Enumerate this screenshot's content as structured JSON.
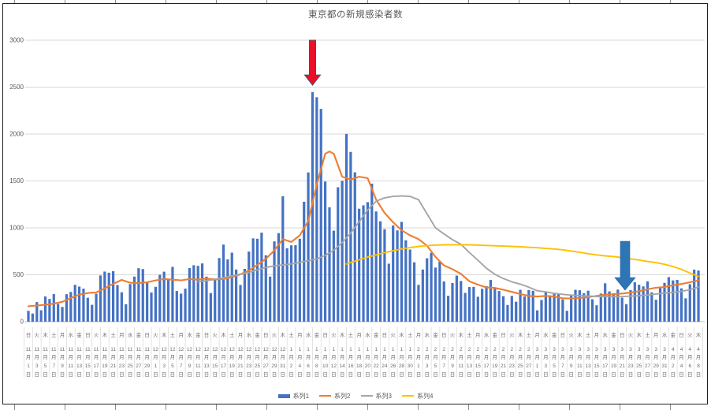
{
  "chart": {
    "title": "東京都の新規感染者数",
    "legend": [
      {
        "label": "系列1",
        "marker": "bar",
        "color": "#4472C4"
      },
      {
        "label": "系列2",
        "marker": "line",
        "color": "#ED7D31"
      },
      {
        "label": "系列3",
        "marker": "line",
        "color": "#A5A5A5"
      },
      {
        "label": "系列4",
        "marker": "line",
        "color": "#FFC000"
      }
    ],
    "colors": {
      "bar": "#4472C4",
      "line2": "#ED7D31",
      "line3": "#A5A5A5",
      "line4": "#FFC000",
      "gridline": "#D9D9D9",
      "axis_line": "#BFBFBF",
      "tick_text": "#595959",
      "label_text": "#6e6e6e",
      "title_text": "#595959",
      "red_arrow_fill": "#E8112B",
      "red_arrow_outline": "#44546A",
      "blue_arrow_fill": "#2E75B6",
      "blue_arrow_outline": "#2363A5"
    }
  },
  "chart_data": {
    "type": "bar",
    "combo": "daily bars (系列1) with three overlay lines (系列2 orange, 系列3 gray, 系列4 yellow)",
    "title": "東京都の新規感染者数",
    "xlabel": "",
    "ylabel": "",
    "ylim": [
      0,
      3000
    ],
    "grid": true,
    "legend_position": "bottom-center",
    "y_ticks": [
      0,
      500,
      1000,
      1500,
      2000,
      2500,
      3000
    ],
    "x_label_every_n_days": 2,
    "x_first_label": "11月1日",
    "x_last_label": "4月8日",
    "x_labels": [
      [
        "日",
        "11",
        "1"
      ],
      [
        "火",
        "11",
        "3"
      ],
      [
        "木",
        "11",
        "5"
      ],
      [
        "土",
        "11",
        "7"
      ],
      [
        "月",
        "11",
        "9"
      ],
      [
        "水",
        "11",
        "11"
      ],
      [
        "金",
        "11",
        "13"
      ],
      [
        "日",
        "11",
        "15"
      ],
      [
        "火",
        "11",
        "17"
      ],
      [
        "木",
        "11",
        "19"
      ],
      [
        "土",
        "11",
        "21"
      ],
      [
        "月",
        "11",
        "23"
      ],
      [
        "水",
        "11",
        "25"
      ],
      [
        "金",
        "11",
        "27"
      ],
      [
        "日",
        "11",
        "29"
      ],
      [
        "火",
        "12",
        "1"
      ],
      [
        "木",
        "12",
        "3"
      ],
      [
        "土",
        "12",
        "5"
      ],
      [
        "月",
        "12",
        "7"
      ],
      [
        "水",
        "12",
        "9"
      ],
      [
        "金",
        "12",
        "11"
      ],
      [
        "日",
        "12",
        "13"
      ],
      [
        "火",
        "12",
        "15"
      ],
      [
        "木",
        "12",
        "17"
      ],
      [
        "土",
        "12",
        "19"
      ],
      [
        "月",
        "12",
        "21"
      ],
      [
        "水",
        "12",
        "23"
      ],
      [
        "金",
        "12",
        "25"
      ],
      [
        "日",
        "12",
        "27"
      ],
      [
        "火",
        "12",
        "29"
      ],
      [
        "木",
        "12",
        "31"
      ],
      [
        "土",
        "1",
        "2"
      ],
      [
        "月",
        "1",
        "4"
      ],
      [
        "水",
        "1",
        "6"
      ],
      [
        "金",
        "1",
        "8"
      ],
      [
        "日",
        "1",
        "10"
      ],
      [
        "火",
        "1",
        "12"
      ],
      [
        "木",
        "1",
        "14"
      ],
      [
        "土",
        "1",
        "16"
      ],
      [
        "月",
        "1",
        "18"
      ],
      [
        "水",
        "1",
        "20"
      ],
      [
        "金",
        "1",
        "22"
      ],
      [
        "日",
        "1",
        "24"
      ],
      [
        "火",
        "1",
        "26"
      ],
      [
        "木",
        "1",
        "28"
      ],
      [
        "土",
        "1",
        "30"
      ],
      [
        "月",
        "2",
        "1"
      ],
      [
        "水",
        "2",
        "3"
      ],
      [
        "金",
        "2",
        "5"
      ],
      [
        "日",
        "2",
        "7"
      ],
      [
        "火",
        "2",
        "9"
      ],
      [
        "木",
        "2",
        "11"
      ],
      [
        "土",
        "2",
        "13"
      ],
      [
        "月",
        "2",
        "15"
      ],
      [
        "水",
        "2",
        "17"
      ],
      [
        "金",
        "2",
        "19"
      ],
      [
        "日",
        "2",
        "21"
      ],
      [
        "火",
        "2",
        "23"
      ],
      [
        "木",
        "2",
        "25"
      ],
      [
        "土",
        "2",
        "27"
      ],
      [
        "月",
        "3",
        "1"
      ],
      [
        "水",
        "3",
        "3"
      ],
      [
        "金",
        "3",
        "5"
      ],
      [
        "日",
        "3",
        "7"
      ],
      [
        "火",
        "3",
        "9"
      ],
      [
        "木",
        "3",
        "11"
      ],
      [
        "土",
        "3",
        "13"
      ],
      [
        "月",
        "3",
        "15"
      ],
      [
        "水",
        "3",
        "17"
      ],
      [
        "金",
        "3",
        "19"
      ],
      [
        "日",
        "3",
        "21"
      ],
      [
        "火",
        "3",
        "23"
      ],
      [
        "木",
        "3",
        "25"
      ],
      [
        "土",
        "3",
        "27"
      ],
      [
        "月",
        "3",
        "29"
      ],
      [
        "水",
        "3",
        "31"
      ],
      [
        "金",
        "4",
        "2"
      ],
      [
        "日",
        "4",
        "4"
      ],
      [
        "火",
        "4",
        "6"
      ],
      [
        "木",
        "4",
        "8"
      ]
    ],
    "series": [
      {
        "name": "系列1",
        "type": "bar",
        "color": "#4472C4",
        "values": [
          116,
          87,
          209,
          122,
          269,
          242,
          294,
          189,
          157,
          293,
          317,
          393,
          374,
          352,
          255,
          180,
          298,
          493,
          534,
          522,
          539,
          391,
          314,
          186,
          401,
          481,
          570,
          561,
          418,
          311,
          372,
          500,
          533,
          449,
          584,
          327,
          299,
          352,
          572,
          602,
          595,
          621,
          480,
          305,
          460,
          678,
          822,
          664,
          736,
          556,
          392,
          563,
          748,
          888,
          884,
          949,
          708,
          481,
          856,
          944,
          1337,
          783,
          814,
          816,
          884,
          1278,
          1591,
          2447,
          2392,
          2268,
          1494,
          1219,
          970,
          1433,
          1502,
          2001,
          1809,
          1592,
          1204,
          1240,
          1274,
          1471,
          1175,
          1070,
          986,
          618,
          1026,
          973,
          1064,
          868,
          769,
          633,
          393,
          556,
          676,
          734,
          577,
          639,
          429,
          276,
          412,
          491,
          434,
          307,
          369,
          371,
          266,
          350,
          378,
          445,
          353,
          327,
          272,
          178,
          275,
          213,
          340,
          270,
          337,
          329,
          121,
          232,
          316,
          279,
          301,
          293,
          237,
          116,
          290,
          340,
          335,
          304,
          330,
          239,
          175,
          300,
          409,
          323,
          303,
          342,
          256,
          187,
          337,
          420,
          394,
          376,
          430,
          313,
          234,
          364,
          414,
          475,
          440,
          446,
          355,
          249,
          399,
          555,
          545
        ]
      },
      {
        "name": "系列2",
        "type": "line",
        "color": "#ED7D31",
        "points": [
          [
            0,
            165
          ],
          [
            2,
            172
          ],
          [
            4,
            180
          ],
          [
            6,
            192
          ],
          [
            8,
            212
          ],
          [
            10,
            252
          ],
          [
            12,
            288
          ],
          [
            14,
            306
          ],
          [
            16,
            312
          ],
          [
            18,
            355
          ],
          [
            20,
            403
          ],
          [
            22,
            445
          ],
          [
            24,
            415
          ],
          [
            26,
            410
          ],
          [
            28,
            420
          ],
          [
            30,
            440
          ],
          [
            32,
            455
          ],
          [
            34,
            448
          ],
          [
            36,
            440
          ],
          [
            38,
            455
          ],
          [
            40,
            448
          ],
          [
            42,
            460
          ],
          [
            44,
            450
          ],
          [
            46,
            455
          ],
          [
            48,
            475
          ],
          [
            50,
            505
          ],
          [
            52,
            545
          ],
          [
            54,
            605
          ],
          [
            56,
            670
          ],
          [
            58,
            760
          ],
          [
            60,
            880
          ],
          [
            62,
            850
          ],
          [
            64,
            920
          ],
          [
            66,
            1072
          ],
          [
            68,
            1460
          ],
          [
            70,
            1790
          ],
          [
            71,
            1815
          ],
          [
            72,
            1790
          ],
          [
            74,
            1545
          ],
          [
            76,
            1515
          ],
          [
            78,
            1545
          ],
          [
            80,
            1530
          ],
          [
            82,
            1300
          ],
          [
            84,
            1160
          ],
          [
            86,
            1060
          ],
          [
            88,
            975
          ],
          [
            90,
            920
          ],
          [
            92,
            880
          ],
          [
            94,
            810
          ],
          [
            96,
            690
          ],
          [
            98,
            600
          ],
          [
            100,
            560
          ],
          [
            102,
            510
          ],
          [
            104,
            430
          ],
          [
            106,
            395
          ],
          [
            108,
            365
          ],
          [
            110,
            360
          ],
          [
            112,
            340
          ],
          [
            114,
            318
          ],
          [
            116,
            295
          ],
          [
            118,
            275
          ],
          [
            120,
            268
          ],
          [
            122,
            275
          ],
          [
            124,
            268
          ],
          [
            126,
            250
          ],
          [
            128,
            248
          ],
          [
            130,
            252
          ],
          [
            132,
            262
          ],
          [
            134,
            275
          ],
          [
            136,
            288
          ],
          [
            138,
            292
          ],
          [
            140,
            300
          ],
          [
            142,
            310
          ],
          [
            144,
            325
          ],
          [
            146,
            345
          ],
          [
            148,
            362
          ],
          [
            150,
            370
          ],
          [
            152,
            388
          ],
          [
            154,
            402
          ],
          [
            156,
            420
          ],
          [
            158,
            440
          ]
        ]
      },
      {
        "name": "系列3",
        "type": "line",
        "color": "#A5A5A5",
        "points": [
          [
            40,
            425
          ],
          [
            44,
            450
          ],
          [
            48,
            488
          ],
          [
            52,
            525
          ],
          [
            56,
            578
          ],
          [
            58,
            595
          ],
          [
            60,
            605
          ],
          [
            62,
            615
          ],
          [
            64,
            632
          ],
          [
            66,
            650
          ],
          [
            68,
            668
          ],
          [
            70,
            705
          ],
          [
            72,
            762
          ],
          [
            74,
            842
          ],
          [
            76,
            945
          ],
          [
            78,
            1065
          ],
          [
            80,
            1190
          ],
          [
            82,
            1285
          ],
          [
            84,
            1320
          ],
          [
            86,
            1335
          ],
          [
            88,
            1340
          ],
          [
            90,
            1335
          ],
          [
            92,
            1300
          ],
          [
            94,
            1150
          ],
          [
            96,
            1000
          ],
          [
            98,
            935
          ],
          [
            100,
            875
          ],
          [
            102,
            825
          ],
          [
            104,
            737
          ],
          [
            106,
            655
          ],
          [
            108,
            570
          ],
          [
            110,
            505
          ],
          [
            112,
            460
          ],
          [
            114,
            425
          ],
          [
            116,
            400
          ],
          [
            118,
            368
          ],
          [
            120,
            330
          ],
          [
            122,
            318
          ],
          [
            124,
            302
          ],
          [
            126,
            292
          ],
          [
            128,
            283
          ],
          [
            130,
            277
          ],
          [
            132,
            272
          ],
          [
            134,
            269
          ],
          [
            136,
            267
          ],
          [
            138,
            266
          ],
          [
            140,
            268
          ],
          [
            142,
            272
          ],
          [
            144,
            277
          ],
          [
            146,
            284
          ],
          [
            148,
            295
          ],
          [
            150,
            305
          ],
          [
            152,
            313
          ],
          [
            154,
            323
          ],
          [
            156,
            341
          ],
          [
            158,
            368
          ]
        ]
      },
      {
        "name": "系列4",
        "type": "line",
        "color": "#FFC000",
        "points": [
          [
            75,
            615
          ],
          [
            78,
            660
          ],
          [
            80,
            688
          ],
          [
            82,
            712
          ],
          [
            84,
            735
          ],
          [
            86,
            757
          ],
          [
            88,
            775
          ],
          [
            90,
            790
          ],
          [
            92,
            802
          ],
          [
            94,
            810
          ],
          [
            96,
            816
          ],
          [
            98,
            819
          ],
          [
            100,
            820
          ],
          [
            104,
            819
          ],
          [
            108,
            813
          ],
          [
            112,
            806
          ],
          [
            116,
            798
          ],
          [
            120,
            788
          ],
          [
            124,
            775
          ],
          [
            126,
            766
          ],
          [
            128,
            753
          ],
          [
            130,
            740
          ],
          [
            132,
            724
          ],
          [
            134,
            712
          ],
          [
            136,
            702
          ],
          [
            138,
            695
          ],
          [
            140,
            682
          ],
          [
            142,
            670
          ],
          [
            144,
            657
          ],
          [
            146,
            642
          ],
          [
            148,
            629
          ],
          [
            150,
            612
          ],
          [
            152,
            588
          ],
          [
            154,
            558
          ],
          [
            156,
            518
          ],
          [
            158,
            482
          ]
        ]
      }
    ],
    "annotations": [
      {
        "name": "red-arrow",
        "shape": "down-arrow",
        "fill": "#E8112B",
        "outline": "#44546A",
        "x_index": 67,
        "y_from": 3000,
        "y_to": 2520,
        "points_at_label": "1月7日"
      },
      {
        "name": "blue-arrow",
        "shape": "down-arrow",
        "fill": "#2E75B6",
        "outline": "#2363A5",
        "x_index": 140.7,
        "y_from": 857,
        "y_to": 336,
        "points_at_label": "3月21日"
      }
    ]
  }
}
